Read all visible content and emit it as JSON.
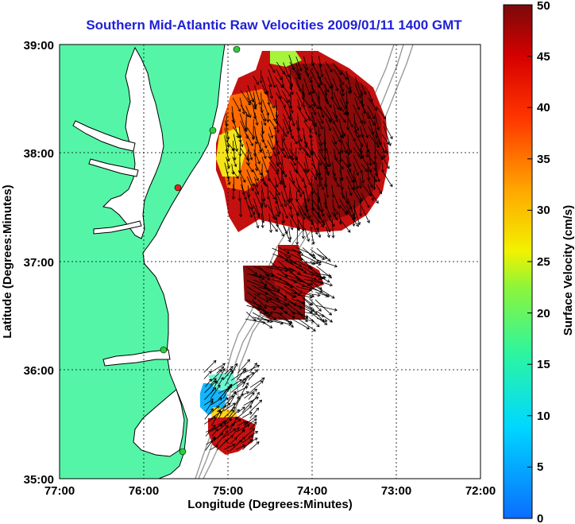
{
  "title": "Southern Mid-Atlantic Raw Velocities 2009/01/11 1400 GMT",
  "x_axis": {
    "label": "Longitude (Degrees:Minutes)",
    "ticks": [
      "77:00",
      "76:00",
      "75:00",
      "74:00",
      "73:00",
      "72:00"
    ]
  },
  "y_axis": {
    "label": "Latitude (Degrees:Minutes)",
    "ticks": [
      "39:00",
      "38:00",
      "37:00",
      "36:00",
      "35:00"
    ]
  },
  "colorbar": {
    "label": "Surface Velocity (cm/s)",
    "min": 0,
    "max": 50,
    "ticks": [
      "0",
      "5",
      "10",
      "15",
      "20",
      "25",
      "30",
      "35",
      "40",
      "45",
      "50"
    ]
  },
  "colors": {
    "land": "#55f5a8",
    "ocean": "#ffffff",
    "coast": "#000000",
    "bathymetry": "#9a9a9a",
    "title": "#1f1fd6",
    "station": "#2ecc40",
    "station_alt": "#e02020"
  }
}
